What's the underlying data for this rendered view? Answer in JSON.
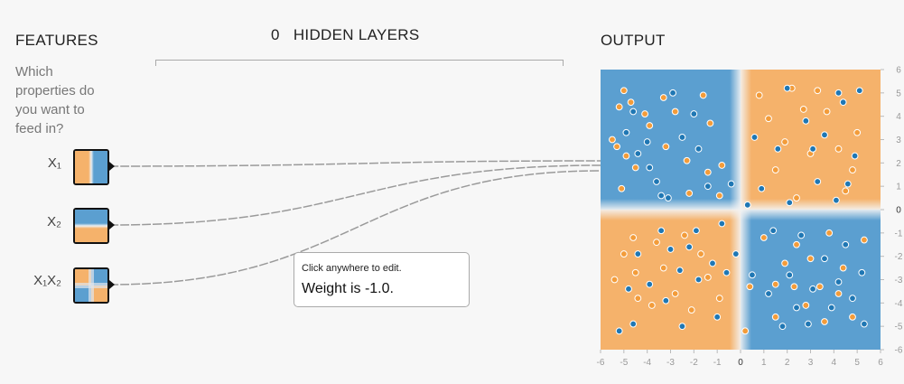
{
  "features": {
    "title": "FEATURES",
    "question": "Which properties do you want to feed in?",
    "items": [
      {
        "label": "X₁",
        "name": "x1"
      },
      {
        "label": "X₂",
        "name": "x2"
      },
      {
        "label": "X₁X₂",
        "name": "x1x2"
      }
    ]
  },
  "hidden_layers": {
    "count": "0",
    "label": "HIDDEN LAYERS"
  },
  "output": {
    "title": "OUTPUT"
  },
  "tooltip": {
    "hint": "Click anywhere to edit.",
    "weight": "Weight is -1.0."
  },
  "colors": {
    "blue": "#5b9fd0",
    "orange": "#f5b26b",
    "white": "#f7f7f7",
    "point_blue": "#1f77b4",
    "point_orange": "#f39c3a"
  },
  "chart_data": {
    "type": "scatter",
    "title": "",
    "xlabel": "",
    "ylabel": "",
    "xlim": [
      -6,
      6
    ],
    "ylim": [
      -6,
      6
    ],
    "x_ticks": [
      "-6",
      "-5",
      "-4",
      "-3",
      "-2",
      "-1",
      "0",
      "1",
      "2",
      "3",
      "4",
      "5",
      "6"
    ],
    "y_ticks": [
      "6",
      "5",
      "4",
      "3",
      "2",
      "1",
      "0",
      "-1",
      "-2",
      "-3",
      "-4",
      "-5",
      "-6"
    ],
    "background": "xor-heatmap: orange where x*y>0, blue where x*y<0",
    "series": [
      {
        "color": "orange",
        "points": [
          [
            -5.2,
            4.4
          ],
          [
            -5.0,
            5.1
          ],
          [
            -4.7,
            4.6
          ],
          [
            -4.1,
            4.1
          ],
          [
            -3.9,
            3.6
          ],
          [
            -3.3,
            4.8
          ],
          [
            -2.8,
            4.2
          ],
          [
            -1.6,
            4.9
          ],
          [
            -1.3,
            3.7
          ],
          [
            -5.5,
            3.0
          ],
          [
            -5.3,
            2.7
          ],
          [
            -4.9,
            2.3
          ],
          [
            -4.5,
            1.8
          ],
          [
            -3.2,
            2.7
          ],
          [
            -2.3,
            2.1
          ],
          [
            -1.4,
            1.6
          ],
          [
            -0.8,
            1.9
          ],
          [
            -0.9,
            0.6
          ],
          [
            -2.2,
            0.7
          ],
          [
            -5.1,
            0.9
          ],
          [
            -5.0,
            -1.9
          ],
          [
            -4.5,
            -2.7
          ],
          [
            -4.4,
            -3.8
          ],
          [
            -3.8,
            -4.1
          ],
          [
            -3.3,
            -2.5
          ],
          [
            -2.8,
            -3.6
          ],
          [
            -2.1,
            -4.3
          ],
          [
            -1.4,
            -2.9
          ],
          [
            -0.9,
            -3.8
          ],
          [
            -1.7,
            -1.9
          ],
          [
            -3.6,
            -1.4
          ],
          [
            -4.6,
            -1.2
          ],
          [
            -2.4,
            -1.1
          ],
          [
            -5.4,
            -3.0
          ],
          [
            0.4,
            -3.3
          ],
          [
            0.2,
            -5.2
          ],
          [
            0.8,
            4.9
          ],
          [
            1.2,
            3.9
          ],
          [
            2.2,
            5.2
          ],
          [
            2.7,
            4.3
          ],
          [
            3.3,
            5.1
          ],
          [
            1.9,
            2.9
          ],
          [
            3.0,
            2.4
          ],
          [
            4.2,
            2.6
          ],
          [
            4.8,
            1.7
          ],
          [
            4.5,
            0.8
          ],
          [
            3.7,
            4.2
          ],
          [
            1.5,
            1.7
          ],
          [
            2.4,
            0.5
          ],
          [
            5.0,
            3.3
          ],
          [
            1.0,
            -1.2
          ],
          [
            1.9,
            -2.3
          ],
          [
            2.4,
            -1.5
          ],
          [
            3.0,
            -2.1
          ],
          [
            3.8,
            -1.0
          ],
          [
            4.4,
            -2.5
          ],
          [
            5.3,
            -1.3
          ],
          [
            1.5,
            -3.2
          ],
          [
            2.3,
            -3.3
          ],
          [
            3.4,
            -3.3
          ],
          [
            4.2,
            -3.6
          ],
          [
            4.8,
            -4.6
          ],
          [
            3.6,
            -4.8
          ],
          [
            2.8,
            -4.1
          ],
          [
            1.5,
            -4.6
          ]
        ]
      },
      {
        "color": "blue",
        "points": [
          [
            -4.9,
            3.3
          ],
          [
            -4.4,
            2.4
          ],
          [
            -3.6,
            1.2
          ],
          [
            -3.1,
            0.5
          ],
          [
            -1.8,
            2.6
          ],
          [
            -2.5,
            3.1
          ],
          [
            -4.0,
            2.9
          ],
          [
            -1.4,
            1.0
          ],
          [
            -2.9,
            5.0
          ],
          [
            -4.6,
            4.2
          ],
          [
            -3.9,
            1.8
          ],
          [
            -0.4,
            1.1
          ],
          [
            -3.4,
            0.6
          ],
          [
            -2.0,
            4.1
          ],
          [
            -4.4,
            -1.9
          ],
          [
            -3.9,
            -3.2
          ],
          [
            -3.2,
            -3.9
          ],
          [
            -2.6,
            -2.6
          ],
          [
            -1.8,
            -3.0
          ],
          [
            -1.2,
            -2.3
          ],
          [
            -0.6,
            -2.7
          ],
          [
            -1.0,
            -4.6
          ],
          [
            -2.5,
            -5.0
          ],
          [
            -4.6,
            -4.9
          ],
          [
            -4.8,
            -3.4
          ],
          [
            -3.0,
            -1.7
          ],
          [
            -1.9,
            -0.9
          ],
          [
            -0.8,
            -0.6
          ],
          [
            -5.2,
            -5.2
          ],
          [
            -2.2,
            -1.6
          ],
          [
            -3.4,
            -0.9
          ],
          [
            0.3,
            0.2
          ],
          [
            -0.2,
            -1.9
          ],
          [
            0.9,
            0.9
          ],
          [
            2.1,
            0.3
          ],
          [
            3.3,
            1.2
          ],
          [
            4.1,
            0.4
          ],
          [
            4.9,
            2.3
          ],
          [
            4.4,
            4.6
          ],
          [
            3.6,
            3.2
          ],
          [
            2.8,
            3.8
          ],
          [
            1.6,
            2.6
          ],
          [
            2.0,
            5.2
          ],
          [
            4.2,
            5.0
          ],
          [
            0.6,
            3.1
          ],
          [
            4.6,
            1.1
          ],
          [
            3.1,
            2.6
          ],
          [
            5.1,
            5.1
          ],
          [
            1.4,
            -0.9
          ],
          [
            2.6,
            -1.1
          ],
          [
            3.6,
            -2.1
          ],
          [
            4.5,
            -1.5
          ],
          [
            5.2,
            -2.7
          ],
          [
            4.8,
            -3.8
          ],
          [
            3.9,
            -4.2
          ],
          [
            2.9,
            -4.9
          ],
          [
            1.8,
            -5.0
          ],
          [
            1.2,
            -3.6
          ],
          [
            2.1,
            -2.8
          ],
          [
            3.1,
            -3.4
          ],
          [
            0.5,
            -2.8
          ],
          [
            2.4,
            -4.2
          ],
          [
            4.2,
            -3.1
          ],
          [
            5.3,
            -4.9
          ]
        ]
      }
    ]
  }
}
